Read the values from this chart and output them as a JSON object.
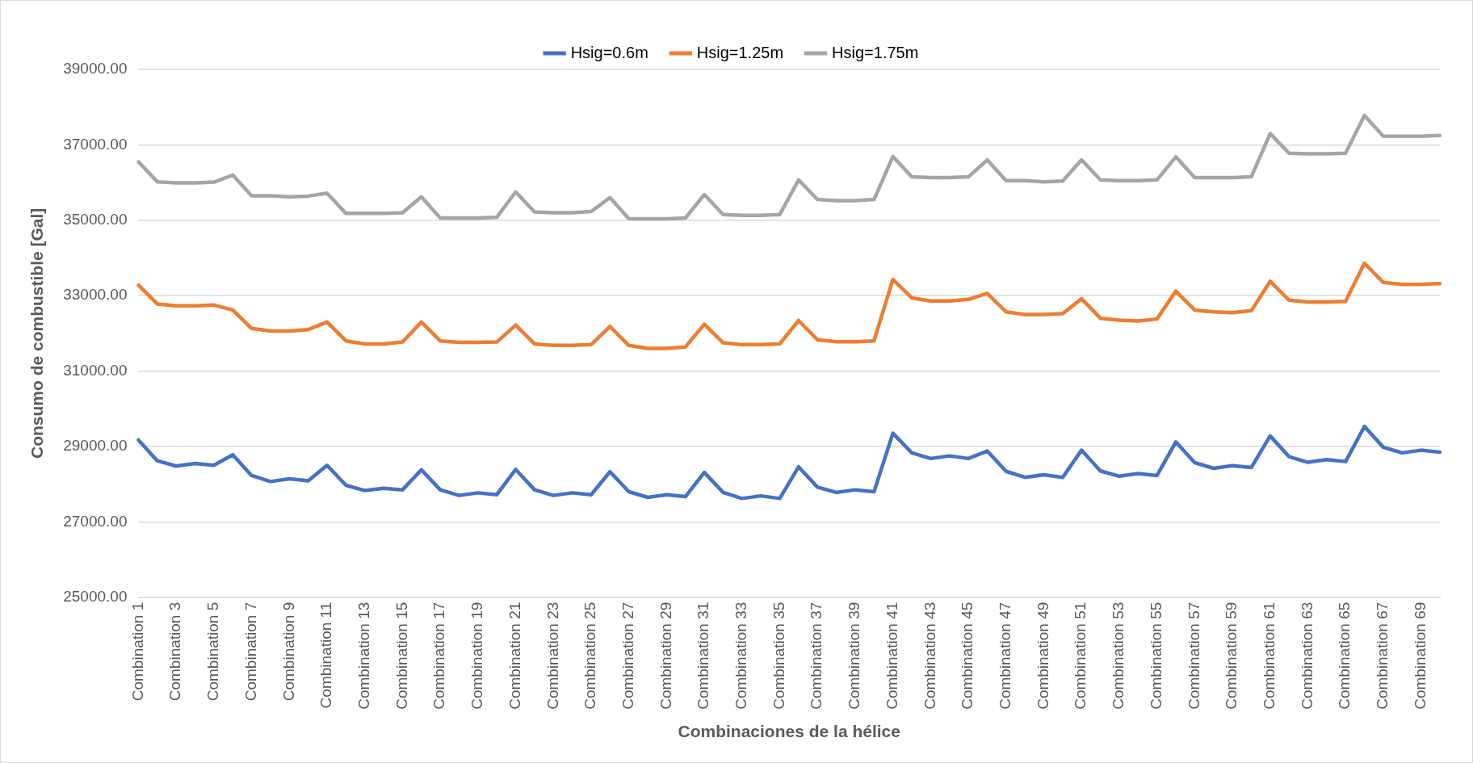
{
  "chart_data": {
    "type": "line",
    "xlabel": "Combinaciones de la hélice",
    "ylabel": "Consumo de combustible [Gal]",
    "categories": [
      "Combination 1",
      null,
      "Combination 3",
      null,
      "Combination 5",
      null,
      "Combination 7",
      null,
      "Combination 9",
      null,
      "Combination 11",
      null,
      "Combination 13",
      null,
      "Combination 15",
      null,
      "Combination 17",
      null,
      "Combination 19",
      null,
      "Combination 21",
      null,
      "Combination 23",
      null,
      "Combination 25",
      null,
      "Combination 27",
      null,
      "Combination 29",
      null,
      "Combination 31",
      null,
      "Combination 33",
      null,
      "Combination 35",
      null,
      "Combination 37",
      null,
      "Combination 39",
      null,
      "Combination 41",
      null,
      "Combination 43",
      null,
      "Combination 45",
      null,
      "Combination 47",
      null,
      "Combination 49",
      null,
      "Combination 51",
      null,
      "Combination 53",
      null,
      "Combination 55",
      null,
      "Combination 57",
      null,
      "Combination 59",
      null,
      "Combination 61",
      null,
      "Combination 63",
      null,
      "Combination 65",
      null,
      "Combination 67",
      null,
      "Combination 69",
      null
    ],
    "series": [
      {
        "name": "Hsig=0.6m",
        "color": "#4472c4",
        "values": [
          29170,
          28620,
          28480,
          28550,
          28500,
          28780,
          28230,
          28070,
          28140,
          28090,
          28500,
          27970,
          27830,
          27890,
          27850,
          28380,
          27850,
          27700,
          27770,
          27720,
          28390,
          27850,
          27700,
          27770,
          27720,
          28330,
          27800,
          27650,
          27720,
          27670,
          28310,
          27780,
          27620,
          27690,
          27620,
          28460,
          27920,
          27780,
          27850,
          27800,
          29350,
          28830,
          28680,
          28750,
          28680,
          28880,
          28340,
          28180,
          28250,
          28180,
          28900,
          28350,
          28210,
          28280,
          28230,
          29120,
          28570,
          28420,
          28490,
          28440,
          29280,
          28730,
          28580,
          28650,
          28600,
          29530,
          28980,
          28830,
          28900,
          28850
        ]
      },
      {
        "name": "Hsig=1.25m",
        "color": "#ed7d31",
        "values": [
          33280,
          32780,
          32730,
          32730,
          32750,
          32620,
          32130,
          32060,
          32060,
          32100,
          32300,
          31800,
          31720,
          31720,
          31770,
          32300,
          31800,
          31760,
          31760,
          31770,
          32220,
          31720,
          31680,
          31680,
          31700,
          32180,
          31680,
          31600,
          31600,
          31640,
          32240,
          31750,
          31700,
          31700,
          31720,
          32340,
          31830,
          31780,
          31780,
          31800,
          33430,
          32940,
          32860,
          32860,
          32900,
          33060,
          32570,
          32500,
          32500,
          32520,
          32920,
          32400,
          32350,
          32330,
          32380,
          33120,
          32620,
          32570,
          32550,
          32600,
          33380,
          32880,
          32830,
          32830,
          32850,
          33860,
          33350,
          33300,
          33300,
          33320
        ]
      },
      {
        "name": "Hsig=1.75m",
        "color": "#a5a5a5",
        "values": [
          36550,
          36020,
          35990,
          35990,
          36010,
          36200,
          35650,
          35650,
          35620,
          35640,
          35720,
          35180,
          35180,
          35180,
          35200,
          35620,
          35060,
          35060,
          35060,
          35080,
          35750,
          35220,
          35200,
          35200,
          35230,
          35600,
          35040,
          35040,
          35040,
          35060,
          35680,
          35150,
          35130,
          35130,
          35150,
          36070,
          35550,
          35520,
          35520,
          35550,
          36690,
          36150,
          36130,
          36130,
          36150,
          36600,
          36050,
          36050,
          36020,
          36040,
          36600,
          36070,
          36050,
          36050,
          36070,
          36680,
          36130,
          36130,
          36130,
          36150,
          37300,
          36780,
          36760,
          36760,
          36780,
          37780,
          37230,
          37230,
          37230,
          37250
        ]
      }
    ],
    "ylim": [
      25000,
      39000
    ],
    "yticks": [
      {
        "value": 25000,
        "label": "25000.00"
      },
      {
        "value": 27000,
        "label": "27000.00"
      },
      {
        "value": 29000,
        "label": "29000.00"
      },
      {
        "value": 31000,
        "label": "31000.00"
      },
      {
        "value": 33000,
        "label": "33000.00"
      },
      {
        "value": 35000,
        "label": "35000.00"
      },
      {
        "value": 37000,
        "label": "37000.00"
      },
      {
        "value": 39000,
        "label": "39000.00"
      }
    ],
    "grid": "y",
    "legend": "top",
    "marker": "none",
    "line_style": "solid"
  }
}
